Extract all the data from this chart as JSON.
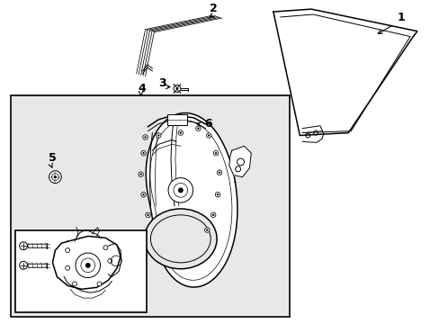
{
  "bg_color": "#ffffff",
  "figsize": [
    4.89,
    3.6
  ],
  "dpi": 100,
  "lw": 0.7,
  "lw2": 1.1,
  "black": "#000000",
  "gray_fill": "#e8e8e8",
  "label_fontsize": 9
}
